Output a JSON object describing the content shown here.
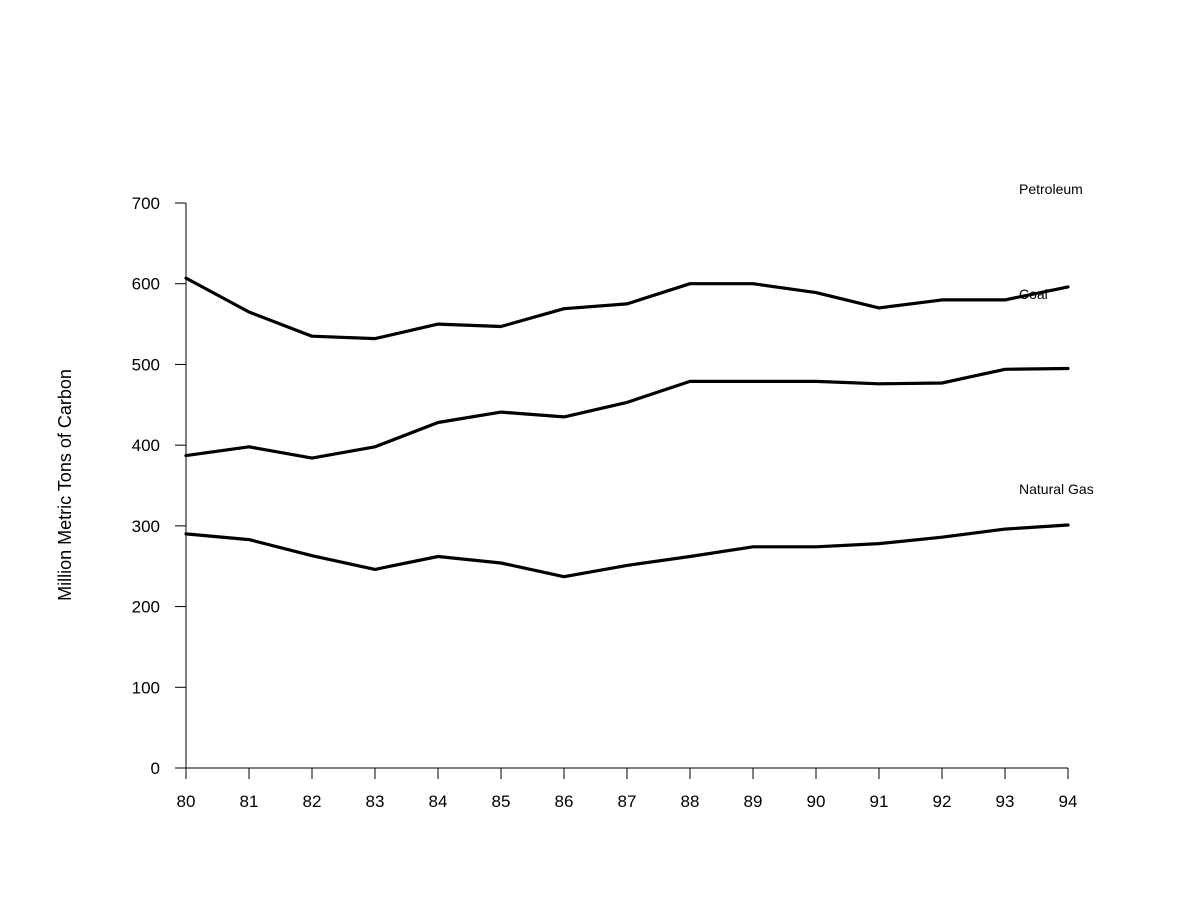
{
  "chart_data": {
    "type": "line",
    "title": "",
    "xlabel": "",
    "ylabel": "Million Metric Tons of Carbon",
    "categories": [
      "80",
      "81",
      "82",
      "83",
      "84",
      "85",
      "86",
      "87",
      "88",
      "89",
      "90",
      "91",
      "92",
      "93",
      "94"
    ],
    "ylim": [
      0,
      700
    ],
    "yticks": [
      "0",
      "100",
      "200",
      "300",
      "400",
      "500",
      "600",
      "700"
    ],
    "grid": false,
    "legend": "direct labels at right end of lines",
    "series": [
      {
        "name": "Petroleum",
        "values": [
          607,
          565,
          535,
          532,
          550,
          547,
          569,
          575,
          600,
          600,
          589,
          570,
          580,
          580,
          596
        ]
      },
      {
        "name": "Coal",
        "values": [
          387,
          398,
          384,
          398,
          428,
          441,
          435,
          453,
          479,
          479,
          479,
          476,
          477,
          494,
          495
        ]
      },
      {
        "name": "Natural Gas",
        "values": [
          290,
          283,
          263,
          246,
          262,
          254,
          237,
          251,
          262,
          274,
          274,
          278,
          286,
          296,
          301
        ]
      }
    ]
  }
}
